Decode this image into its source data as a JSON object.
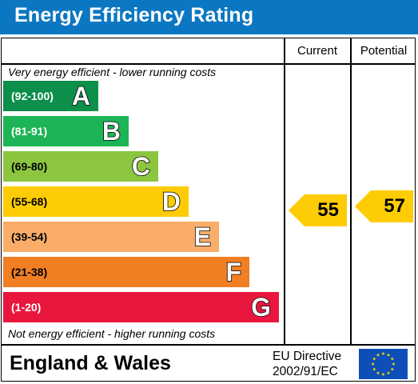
{
  "title": "Energy Efficiency Rating",
  "columns": {
    "current": "Current",
    "potential": "Potential"
  },
  "captions": {
    "top": "Very energy efficient - lower running costs",
    "bottom": "Not energy efficient - higher running costs"
  },
  "chart_data": {
    "type": "bar",
    "title": "Energy Efficiency Rating",
    "categories": [
      "A",
      "B",
      "C",
      "D",
      "E",
      "F",
      "G"
    ],
    "bands": [
      {
        "letter": "A",
        "range": "(92-100)",
        "min": 92,
        "max": 100,
        "color": "#0c8f4a"
      },
      {
        "letter": "B",
        "range": "(81-91)",
        "min": 81,
        "max": 91,
        "color": "#1db456"
      },
      {
        "letter": "C",
        "range": "(69-80)",
        "min": 69,
        "max": 80,
        "color": "#8cc540"
      },
      {
        "letter": "D",
        "range": "(55-68)",
        "min": 55,
        "max": 68,
        "color": "#fdcc04"
      },
      {
        "letter": "E",
        "range": "(39-54)",
        "min": 39,
        "max": 54,
        "color": "#f9ad69"
      },
      {
        "letter": "F",
        "range": "(21-38)",
        "min": 21,
        "max": 38,
        "color": "#f07e23"
      },
      {
        "letter": "G",
        "range": "(1-20)",
        "min": 1,
        "max": 20,
        "color": "#e9173e"
      }
    ],
    "series": [
      {
        "name": "Current",
        "value": 55,
        "band": "D"
      },
      {
        "name": "Potential",
        "value": 57,
        "band": "D"
      }
    ],
    "arrow_color": "#fdcc04"
  },
  "footer": {
    "region": "England & Wales",
    "directive_line1": "EU Directive",
    "directive_line2": "2002/91/EC"
  },
  "colors": {
    "title_bar": "#0b77c2",
    "flag": "#0e4fb7",
    "flag_stars": "#ffdd00"
  },
  "icons": {
    "flag": "eu-flag-icon"
  }
}
